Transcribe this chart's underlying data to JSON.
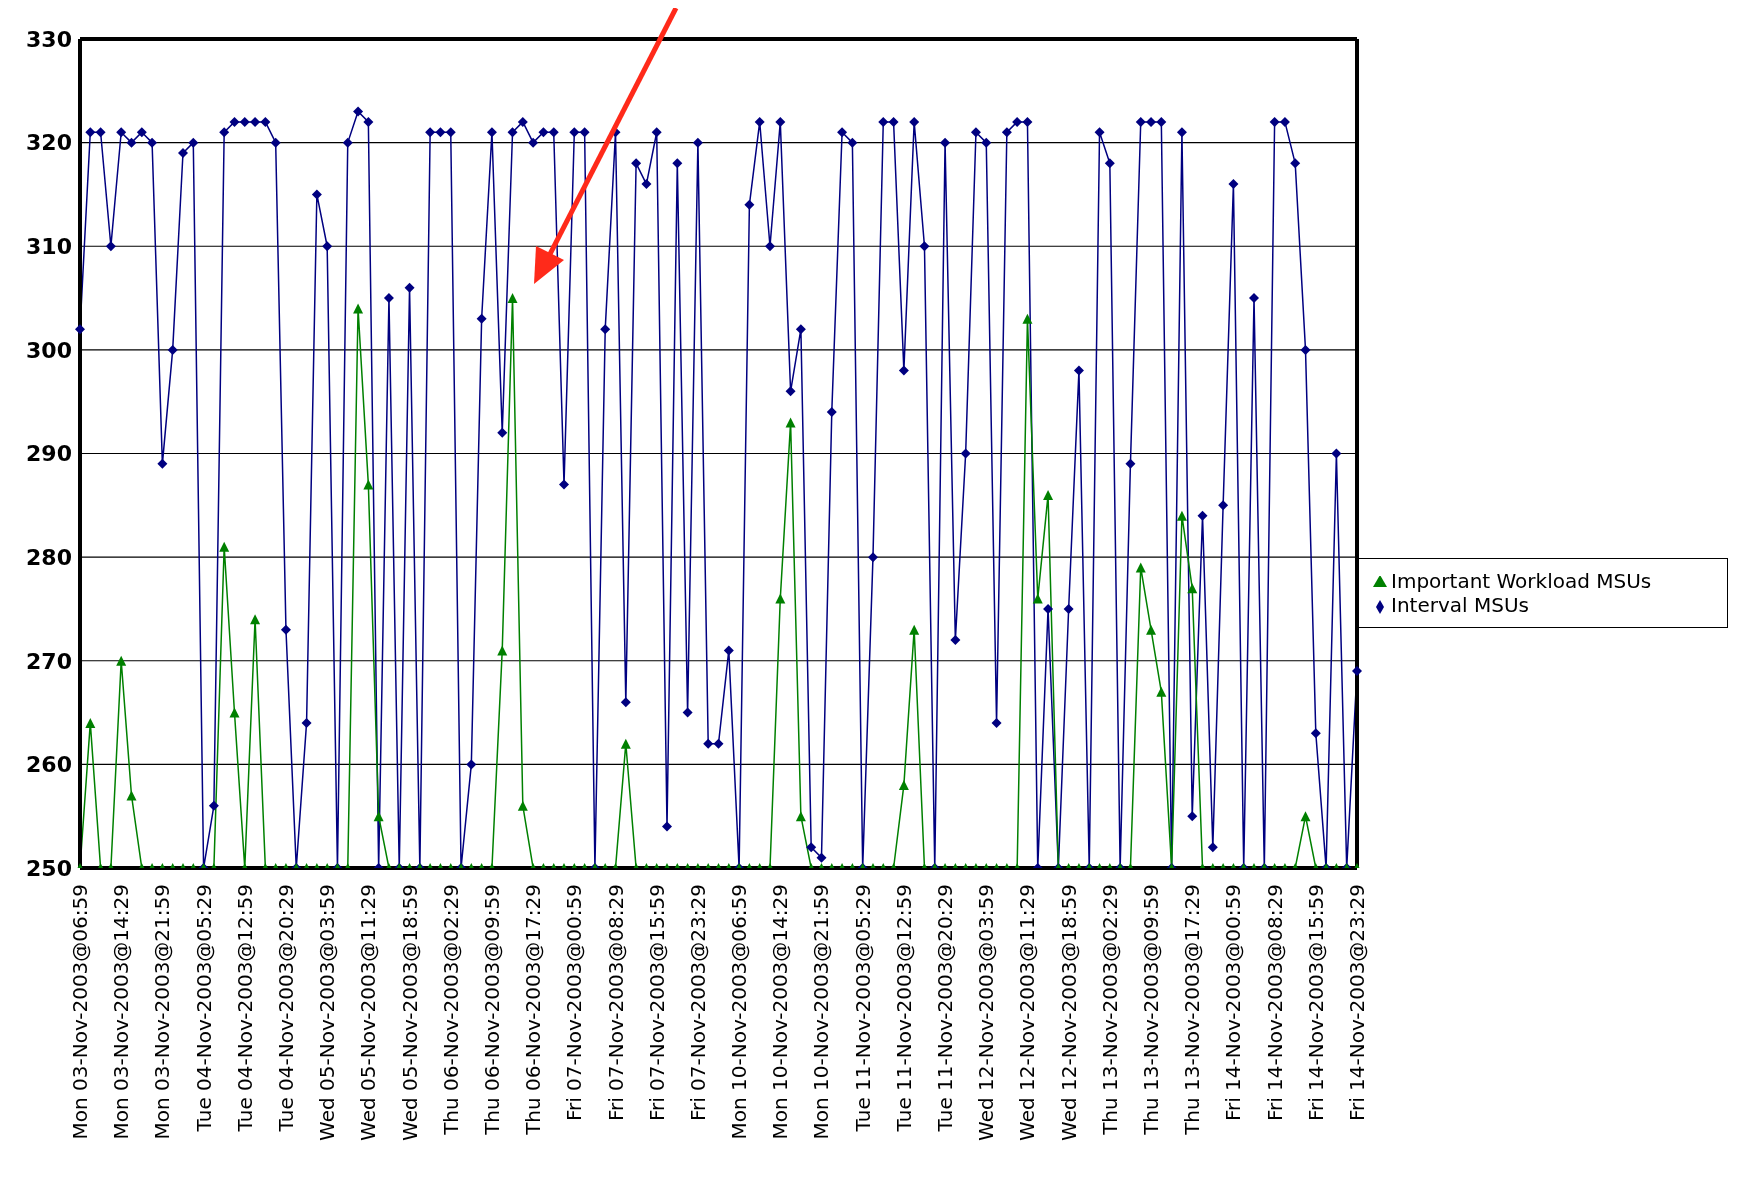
{
  "chart_data": {
    "type": "line",
    "categories": [
      "Mon 03-Nov-2003@06:59",
      null,
      null,
      null,
      "Mon 03-Nov-2003@14:29",
      null,
      null,
      null,
      "Mon 03-Nov-2003@21:59",
      null,
      null,
      null,
      "Tue 04-Nov-2003@05:29",
      null,
      null,
      null,
      "Tue 04-Nov-2003@12:59",
      null,
      null,
      null,
      "Tue 04-Nov-2003@20:29",
      null,
      null,
      null,
      "Wed 05-Nov-2003@03:59",
      null,
      null,
      null,
      "Wed 05-Nov-2003@11:29",
      null,
      null,
      null,
      "Wed 05-Nov-2003@18:59",
      null,
      null,
      null,
      "Thu 06-Nov-2003@02:29",
      null,
      null,
      null,
      "Thu 06-Nov-2003@09:59",
      null,
      null,
      null,
      "Thu 06-Nov-2003@17:29",
      null,
      null,
      null,
      "Fri 07-Nov-2003@00:59",
      null,
      null,
      null,
      "Fri 07-Nov-2003@08:29",
      null,
      null,
      null,
      "Fri 07-Nov-2003@15:59",
      null,
      null,
      null,
      "Fri 07-Nov-2003@23:29",
      null,
      null,
      null,
      "Mon 10-Nov-2003@06:59",
      null,
      null,
      null,
      "Mon 10-Nov-2003@14:29",
      null,
      null,
      null,
      "Mon 10-Nov-2003@21:59",
      null,
      null,
      null,
      "Tue 11-Nov-2003@05:29",
      null,
      null,
      null,
      "Tue 11-Nov-2003@12:59",
      null,
      null,
      null,
      "Tue 11-Nov-2003@20:29",
      null,
      null,
      null,
      "Wed 12-Nov-2003@03:59",
      null,
      null,
      null,
      "Wed 12-Nov-2003@11:29",
      null,
      null,
      null,
      "Wed 12-Nov-2003@18:59",
      null,
      null,
      null,
      "Thu 13-Nov-2003@02:29",
      null,
      null,
      null,
      "Thu 13-Nov-2003@09:59",
      null,
      null,
      null,
      "Thu 13-Nov-2003@17:29",
      null,
      null,
      null,
      "Fri 14-Nov-2003@00:59",
      null,
      null,
      null,
      "Fri 14-Nov-2003@08:29",
      null,
      null,
      null,
      "Fri 14-Nov-2003@15:59",
      null,
      null,
      null,
      "Fri 14-Nov-2003@23:29"
    ],
    "series": [
      {
        "name": "Interval MSUs",
        "color": "#000080",
        "marker": "diamond",
        "values": [
          302,
          321,
          321,
          310,
          321,
          320,
          321,
          320,
          289,
          300,
          319,
          320,
          250,
          256,
          321,
          322,
          322,
          322,
          322,
          320,
          273,
          250,
          264,
          315,
          310,
          250,
          320,
          323,
          322,
          250,
          305,
          250,
          306,
          250,
          321,
          321,
          321,
          250,
          260,
          303,
          321,
          292,
          321,
          322,
          320,
          321,
          321,
          287,
          321,
          321,
          250,
          302,
          321,
          266,
          318,
          316,
          321,
          254,
          318,
          265,
          320,
          262,
          262,
          271,
          250,
          314,
          322,
          310,
          322,
          296,
          302,
          252,
          251,
          294,
          321,
          320,
          250,
          280,
          322,
          322,
          298,
          322,
          310,
          250,
          320,
          272,
          290,
          321,
          320,
          264,
          321,
          322,
          322,
          250,
          275,
          250,
          275,
          298,
          250,
          321,
          318,
          250,
          289,
          322,
          322,
          322,
          250,
          321,
          255,
          284,
          252,
          285,
          316,
          250,
          305,
          250,
          322,
          322,
          318,
          300,
          263,
          250,
          290,
          250,
          269
        ]
      },
      {
        "name": "Important Workload MSUs",
        "color": "#008000",
        "marker": "triangle",
        "values": [
          250,
          264,
          250,
          250,
          270,
          257,
          250,
          250,
          250,
          250,
          250,
          250,
          250,
          250,
          281,
          265,
          250,
          274,
          250,
          250,
          250,
          250,
          250,
          250,
          250,
          250,
          250,
          304,
          287,
          255,
          250,
          250,
          250,
          250,
          250,
          250,
          250,
          250,
          250,
          250,
          250,
          271,
          305,
          256,
          250,
          250,
          250,
          250,
          250,
          250,
          250,
          250,
          250,
          262,
          250,
          250,
          250,
          250,
          250,
          250,
          250,
          250,
          250,
          250,
          250,
          250,
          250,
          250,
          276,
          293,
          255,
          250,
          250,
          250,
          250,
          250,
          250,
          250,
          250,
          250,
          258,
          273,
          250,
          250,
          250,
          250,
          250,
          250,
          250,
          250,
          250,
          250,
          303,
          276,
          286,
          250,
          250,
          250,
          250,
          250,
          250,
          250,
          250,
          279,
          273,
          267,
          250,
          284,
          277,
          250,
          250,
          250,
          250,
          250,
          250,
          250,
          250,
          250,
          250,
          255,
          250,
          250,
          250,
          250,
          250
        ]
      }
    ],
    "ylim": [
      250,
      330
    ],
    "yticks": [
      250,
      260,
      270,
      280,
      290,
      300,
      310,
      320,
      330
    ],
    "grid": "y",
    "legend": "right"
  }
}
